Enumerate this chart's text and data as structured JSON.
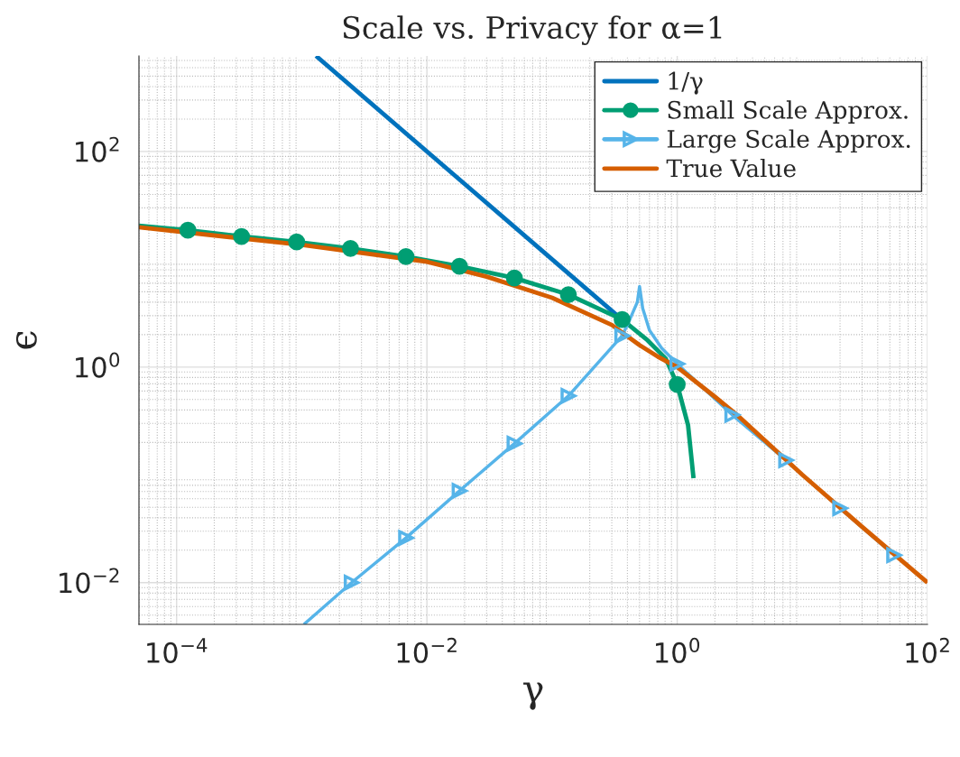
{
  "chart_data": {
    "type": "line",
    "title": "Scale vs. Privacy for α=1",
    "xlabel": "γ",
    "ylabel": "ϵ",
    "log": "xy",
    "grid": true,
    "legend": "top right",
    "xlim": [
      5e-05,
      100
    ],
    "ylim": [
      0.0041,
      770
    ],
    "xticks": [
      {
        "value": 0.0001,
        "label": "10$^{−4}$"
      },
      {
        "value": 0.01,
        "label": "10$^{−2}$"
      },
      {
        "value": 1,
        "label": "10$^{0}$"
      },
      {
        "value": 100,
        "label": "10$^{2}$"
      }
    ],
    "yticks": [
      {
        "value": 0.01,
        "label": "10$^{−2}$"
      },
      {
        "value": 1,
        "label": "10$^{0}$"
      },
      {
        "value": 100,
        "label": "10$^{2}$"
      }
    ],
    "series": [
      {
        "name": "1/γ",
        "color": "#0072bd",
        "x": [
          0.0013,
          0.37
        ],
        "values": [
          770,
          2.7
        ]
      },
      {
        "name": "Small Scale Approx.",
        "color": "#009e73",
        "x": [
          5e-05,
          0.000123,
          0.00033,
          0.00091,
          0.00245,
          0.0068,
          0.0182,
          0.05,
          0.135,
          0.363,
          0.58,
          0.81,
          1.0,
          1.22,
          1.35
        ],
        "values": [
          20.5,
          18.6,
          16.3,
          14.5,
          12.6,
          10.6,
          8.6,
          6.7,
          4.7,
          2.76,
          1.77,
          1.2,
          0.69,
          0.29,
          0.093
        ]
      },
      {
        "type": "scatter",
        "marker": "circle",
        "color": "#009e73",
        "x": [
          0.000123,
          0.00033,
          0.00091,
          0.00245,
          0.0068,
          0.0182,
          0.05,
          0.135,
          0.363,
          1.0
        ],
        "values": [
          18.6,
          16.3,
          14.5,
          12.6,
          10.6,
          8.6,
          6.7,
          4.7,
          2.76,
          0.69
        ]
      },
      {
        "name": "Large Scale Approx.",
        "color": "#56b4e9",
        "x": [
          0.00104,
          0.0025,
          0.0068,
          0.0182,
          0.05,
          0.135,
          0.363,
          0.42,
          0.48,
          0.5,
          0.53,
          0.6,
          0.75,
          1.0,
          2.75,
          7.4,
          20,
          54
        ],
        "values": [
          0.0041,
          0.01,
          0.026,
          0.071,
          0.195,
          0.54,
          1.95,
          2.8,
          4.0,
          5.6,
          3.5,
          2.2,
          1.5,
          1.07,
          0.36,
          0.137,
          0.049,
          0.018
        ]
      },
      {
        "type": "scatter",
        "marker": "triangle",
        "color": "#56b4e9",
        "x": [
          0.0025,
          0.0068,
          0.0182,
          0.05,
          0.135,
          0.363,
          1.0,
          2.75,
          7.4,
          20,
          54
        ],
        "values": [
          0.01,
          0.026,
          0.071,
          0.195,
          0.54,
          1.95,
          1.07,
          0.36,
          0.137,
          0.049,
          0.018
        ]
      },
      {
        "name": "True Value",
        "color": "#d55e00",
        "x": [
          5e-05,
          0.001,
          0.01,
          0.03,
          0.1,
          0.3,
          0.5,
          0.7,
          1,
          2,
          3,
          10,
          30,
          100
        ],
        "values": [
          19.8,
          13.6,
          9.5,
          6.9,
          4.4,
          2.46,
          1.6,
          1.25,
          1.0,
          0.53,
          0.36,
          0.1,
          0.033,
          0.01
        ]
      }
    ]
  }
}
